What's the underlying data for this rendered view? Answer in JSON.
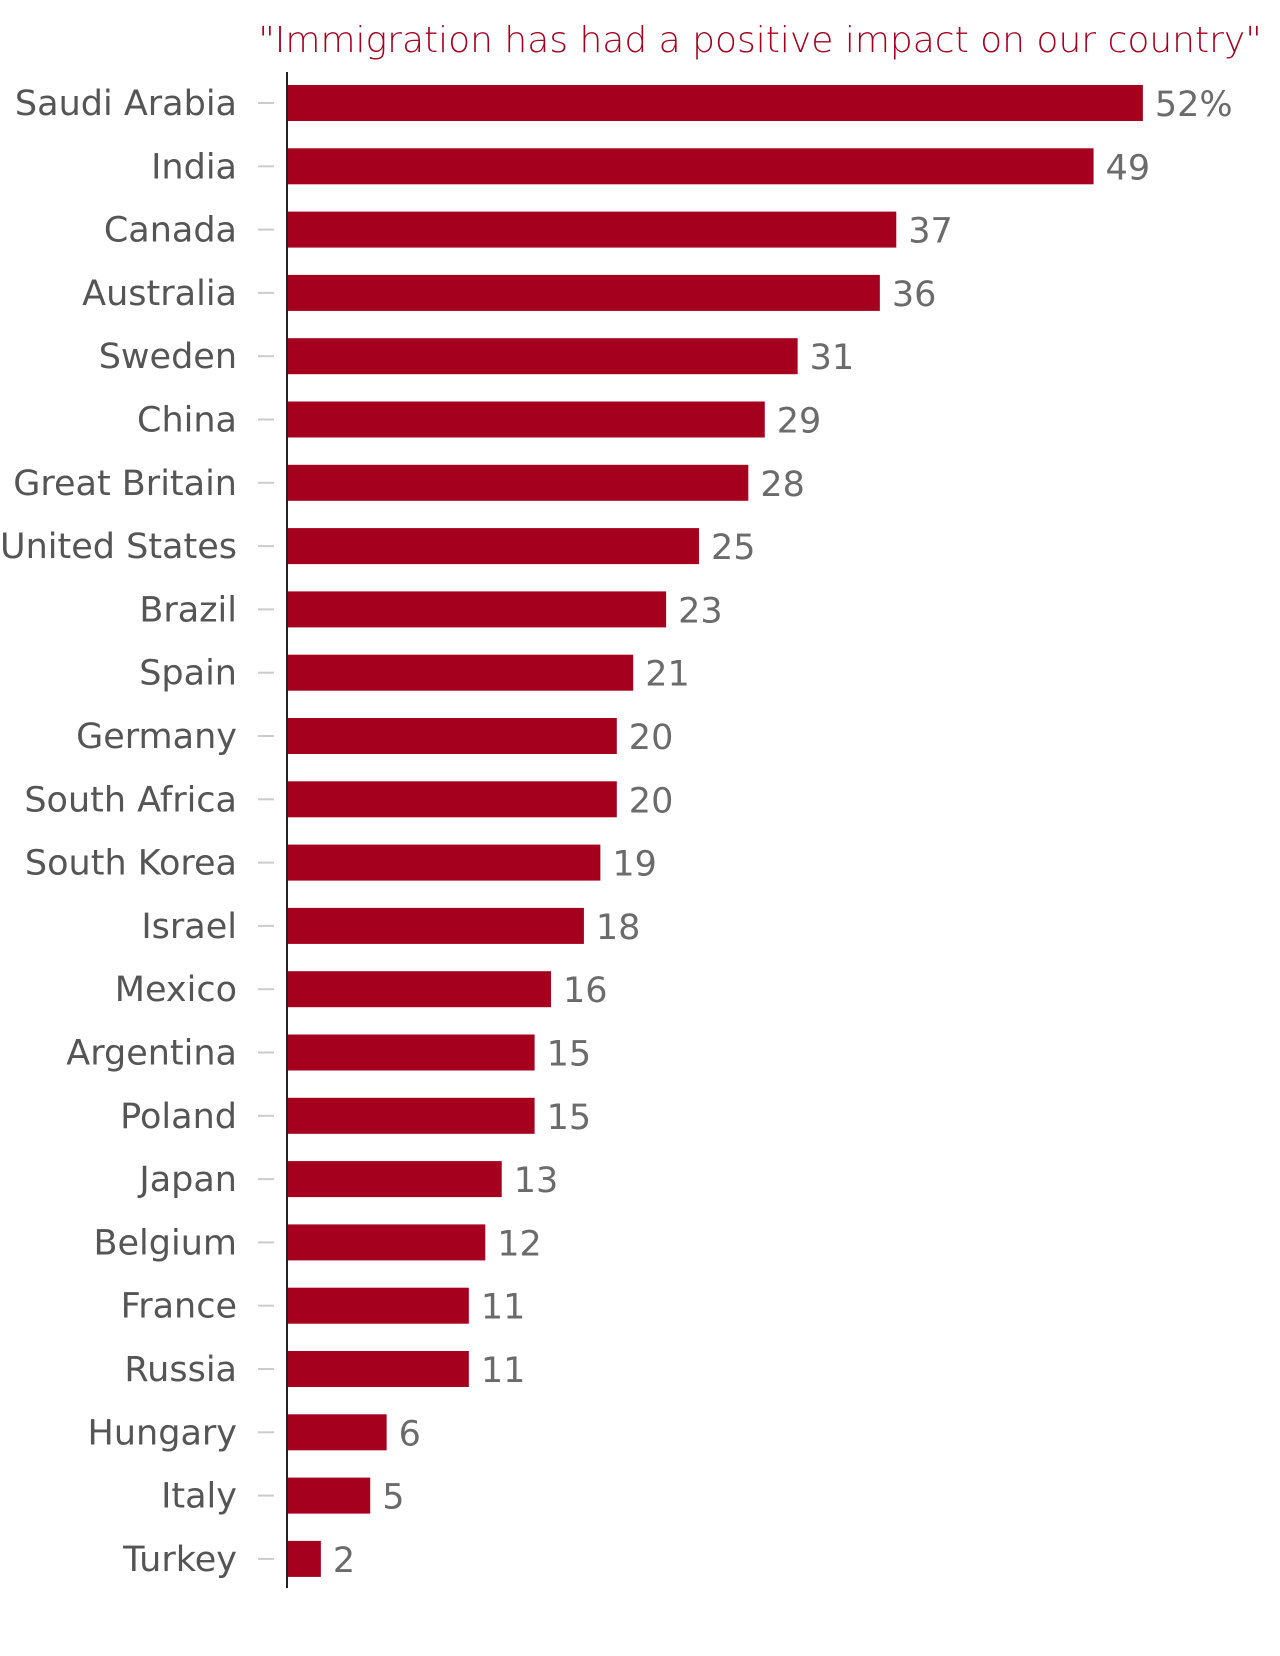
{
  "chart_data": {
    "type": "bar",
    "orientation": "horizontal",
    "title": "\"Immigration has had a positive impact on our country\"",
    "categories": [
      "Saudi Arabia",
      "India",
      "Canada",
      "Australia",
      "Sweden",
      "China",
      "Great Britain",
      "United States",
      "Brazil",
      "Spain",
      "Germany",
      "South Africa",
      "South Korea",
      "Israel",
      "Mexico",
      "Argentina",
      "Poland",
      "Japan",
      "Belgium",
      "France",
      "Russia",
      "Hungary",
      "Italy",
      "Turkey"
    ],
    "values": [
      52,
      49,
      37,
      36,
      31,
      29,
      28,
      25,
      23,
      21,
      20,
      20,
      19,
      18,
      16,
      15,
      15,
      13,
      12,
      11,
      11,
      6,
      5,
      2
    ],
    "value_labels": [
      "52%",
      "49",
      "37",
      "36",
      "31",
      "29",
      "28",
      "25",
      "23",
      "21",
      "20",
      "20",
      "19",
      "18",
      "16",
      "15",
      "15",
      "13",
      "12",
      "11",
      "11",
      "6",
      "5",
      "2"
    ],
    "xlim": [
      0,
      55
    ],
    "grid": false,
    "bar_color": "#a6001f",
    "title_color": "#a6001f"
  }
}
